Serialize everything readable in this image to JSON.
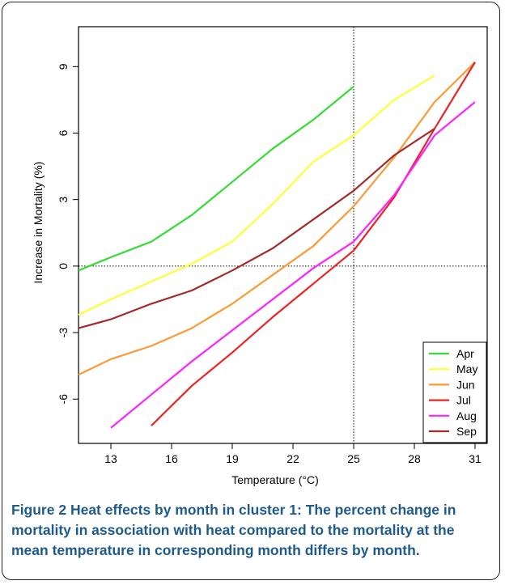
{
  "figure": {
    "caption_label": "Figure 2",
    "caption_text": "Heat effects by month in cluster 1: The percent change in mortality in association with heat compared to the mortality at the mean temperature in corresponding month differs by month."
  },
  "chart_data": {
    "type": "line",
    "title": "",
    "xlabel": "Temperature (°C)",
    "ylabel": "Increase in Mortality (%)",
    "xlim": [
      11.4,
      31.6
    ],
    "ylim": [
      -8.0,
      10.8
    ],
    "xticks": [
      13,
      16,
      19,
      22,
      25,
      28,
      31
    ],
    "yticks": [
      -6,
      -3,
      0,
      3,
      6,
      9
    ],
    "reference_lines": {
      "x": 25,
      "y": 0,
      "style": "dotted"
    },
    "legend_position": "bottom-right",
    "series": [
      {
        "name": "Apr",
        "color": "#33dd33",
        "x": [
          11.4,
          13,
          15,
          17,
          19,
          21,
          23,
          25
        ],
        "y": [
          -0.2,
          0.4,
          1.1,
          2.3,
          3.8,
          5.3,
          6.6,
          8.1
        ]
      },
      {
        "name": "May",
        "color": "#ffff33",
        "x": [
          11.4,
          13,
          15,
          17,
          19,
          21,
          23,
          25,
          27,
          29
        ],
        "y": [
          -2.2,
          -1.5,
          -0.7,
          0.1,
          1.1,
          2.8,
          4.7,
          5.9,
          7.5,
          8.6
        ]
      },
      {
        "name": "Jun",
        "color": "#ff9933",
        "x": [
          11.4,
          13,
          15,
          17,
          19,
          21,
          23,
          25,
          27,
          29,
          31
        ],
        "y": [
          -4.9,
          -4.2,
          -3.6,
          -2.8,
          -1.7,
          -0.4,
          0.9,
          2.7,
          4.9,
          7.4,
          9.2
        ]
      },
      {
        "name": "Jul",
        "color": "#ee2222",
        "x": [
          15,
          17,
          19,
          21,
          23,
          25,
          27,
          29,
          31
        ],
        "y": [
          -7.2,
          -5.4,
          -3.9,
          -2.3,
          -0.8,
          0.7,
          3.1,
          6.2,
          9.2
        ]
      },
      {
        "name": "Aug",
        "color": "#ff22ff",
        "x": [
          13,
          15,
          17,
          19,
          21,
          23,
          25,
          27,
          29,
          31
        ],
        "y": [
          -7.3,
          -5.8,
          -4.3,
          -2.9,
          -1.5,
          -0.1,
          1.1,
          3.2,
          5.9,
          7.4
        ]
      },
      {
        "name": "Sep",
        "color": "#a52a2a",
        "x": [
          11.4,
          13,
          15,
          17,
          19,
          21,
          23,
          25,
          27,
          29
        ],
        "y": [
          -2.8,
          -2.4,
          -1.7,
          -1.1,
          -0.2,
          0.8,
          2.1,
          3.4,
          5.0,
          6.2
        ]
      }
    ]
  }
}
